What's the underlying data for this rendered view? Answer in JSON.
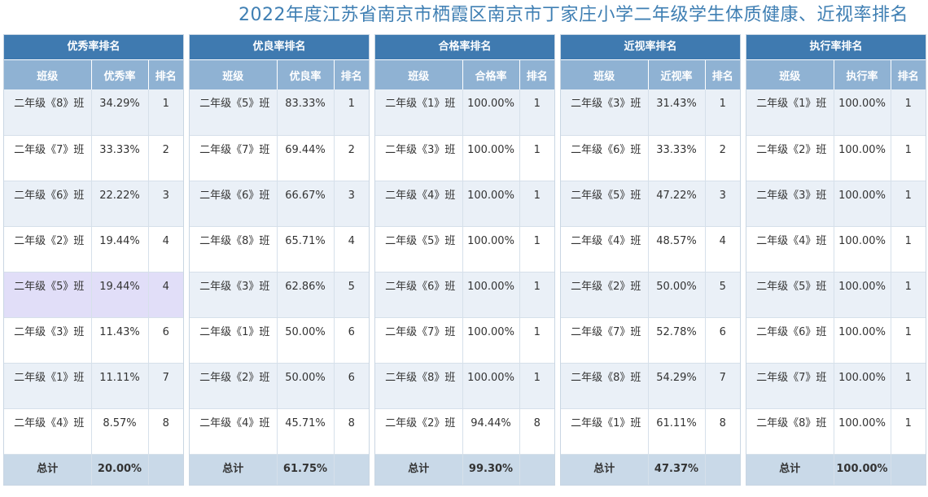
{
  "title": "2022年度江苏省南京市栖霞区南京市丁家庄小学二年级学生体质健康、近视率排名",
  "total_label": "总计",
  "panels": [
    {
      "title": "优秀率排名",
      "headers": [
        "班级",
        "优秀率",
        "排名"
      ],
      "rows": [
        [
          "二年级《8》班",
          "34.29%",
          "1"
        ],
        [
          "二年级《7》班",
          "33.33%",
          "2"
        ],
        [
          "二年级《6》班",
          "22.22%",
          "3"
        ],
        [
          "二年级《2》班",
          "19.44%",
          "4"
        ],
        [
          "二年级《5》班",
          "19.44%",
          "4"
        ],
        [
          "二年级《3》班",
          "11.43%",
          "6"
        ],
        [
          "二年级《1》班",
          "11.11%",
          "7"
        ],
        [
          "二年级《4》班",
          "8.57%",
          "8"
        ]
      ],
      "total": "20.00%",
      "highlight_row": 4
    },
    {
      "title": "优良率排名",
      "headers": [
        "班级",
        "优良率",
        "排名"
      ],
      "rows": [
        [
          "二年级《5》班",
          "83.33%",
          "1"
        ],
        [
          "二年级《7》班",
          "69.44%",
          "2"
        ],
        [
          "二年级《6》班",
          "66.67%",
          "3"
        ],
        [
          "二年级《8》班",
          "65.71%",
          "4"
        ],
        [
          "二年级《3》班",
          "62.86%",
          "5"
        ],
        [
          "二年级《1》班",
          "50.00%",
          "6"
        ],
        [
          "二年级《2》班",
          "50.00%",
          "6"
        ],
        [
          "二年级《4》班",
          "45.71%",
          "8"
        ]
      ],
      "total": "61.75%"
    },
    {
      "title": "合格率排名",
      "headers": [
        "班级",
        "合格率",
        "排名"
      ],
      "rows": [
        [
          "二年级《1》班",
          "100.00%",
          "1"
        ],
        [
          "二年级《3》班",
          "100.00%",
          "1"
        ],
        [
          "二年级《4》班",
          "100.00%",
          "1"
        ],
        [
          "二年级《5》班",
          "100.00%",
          "1"
        ],
        [
          "二年级《6》班",
          "100.00%",
          "1"
        ],
        [
          "二年级《7》班",
          "100.00%",
          "1"
        ],
        [
          "二年级《8》班",
          "100.00%",
          "1"
        ],
        [
          "二年级《2》班",
          "94.44%",
          "8"
        ]
      ],
      "total": "99.30%"
    },
    {
      "title": "近视率排名",
      "headers": [
        "班级",
        "近视率",
        "排名"
      ],
      "rows": [
        [
          "二年级《3》班",
          "31.43%",
          "1"
        ],
        [
          "二年级《6》班",
          "33.33%",
          "2"
        ],
        [
          "二年级《5》班",
          "47.22%",
          "3"
        ],
        [
          "二年级《4》班",
          "48.57%",
          "4"
        ],
        [
          "二年级《2》班",
          "50.00%",
          "5"
        ],
        [
          "二年级《7》班",
          "52.78%",
          "6"
        ],
        [
          "二年级《8》班",
          "54.29%",
          "7"
        ],
        [
          "二年级《1》班",
          "61.11%",
          "8"
        ]
      ],
      "total": "47.37%"
    },
    {
      "title": "执行率排名",
      "headers": [
        "班级",
        "执行率",
        "排名"
      ],
      "rows": [
        [
          "二年级《1》班",
          "100.00%",
          "1"
        ],
        [
          "二年级《2》班",
          "100.00%",
          "1"
        ],
        [
          "二年级《3》班",
          "100.00%",
          "1"
        ],
        [
          "二年级《4》班",
          "100.00%",
          "1"
        ],
        [
          "二年级《5》班",
          "100.00%",
          "1"
        ],
        [
          "二年级《6》班",
          "100.00%",
          "1"
        ],
        [
          "二年级《7》班",
          "100.00%",
          "1"
        ],
        [
          "二年级《8》班",
          "100.00%",
          "1"
        ]
      ],
      "total": "100.00%"
    }
  ]
}
